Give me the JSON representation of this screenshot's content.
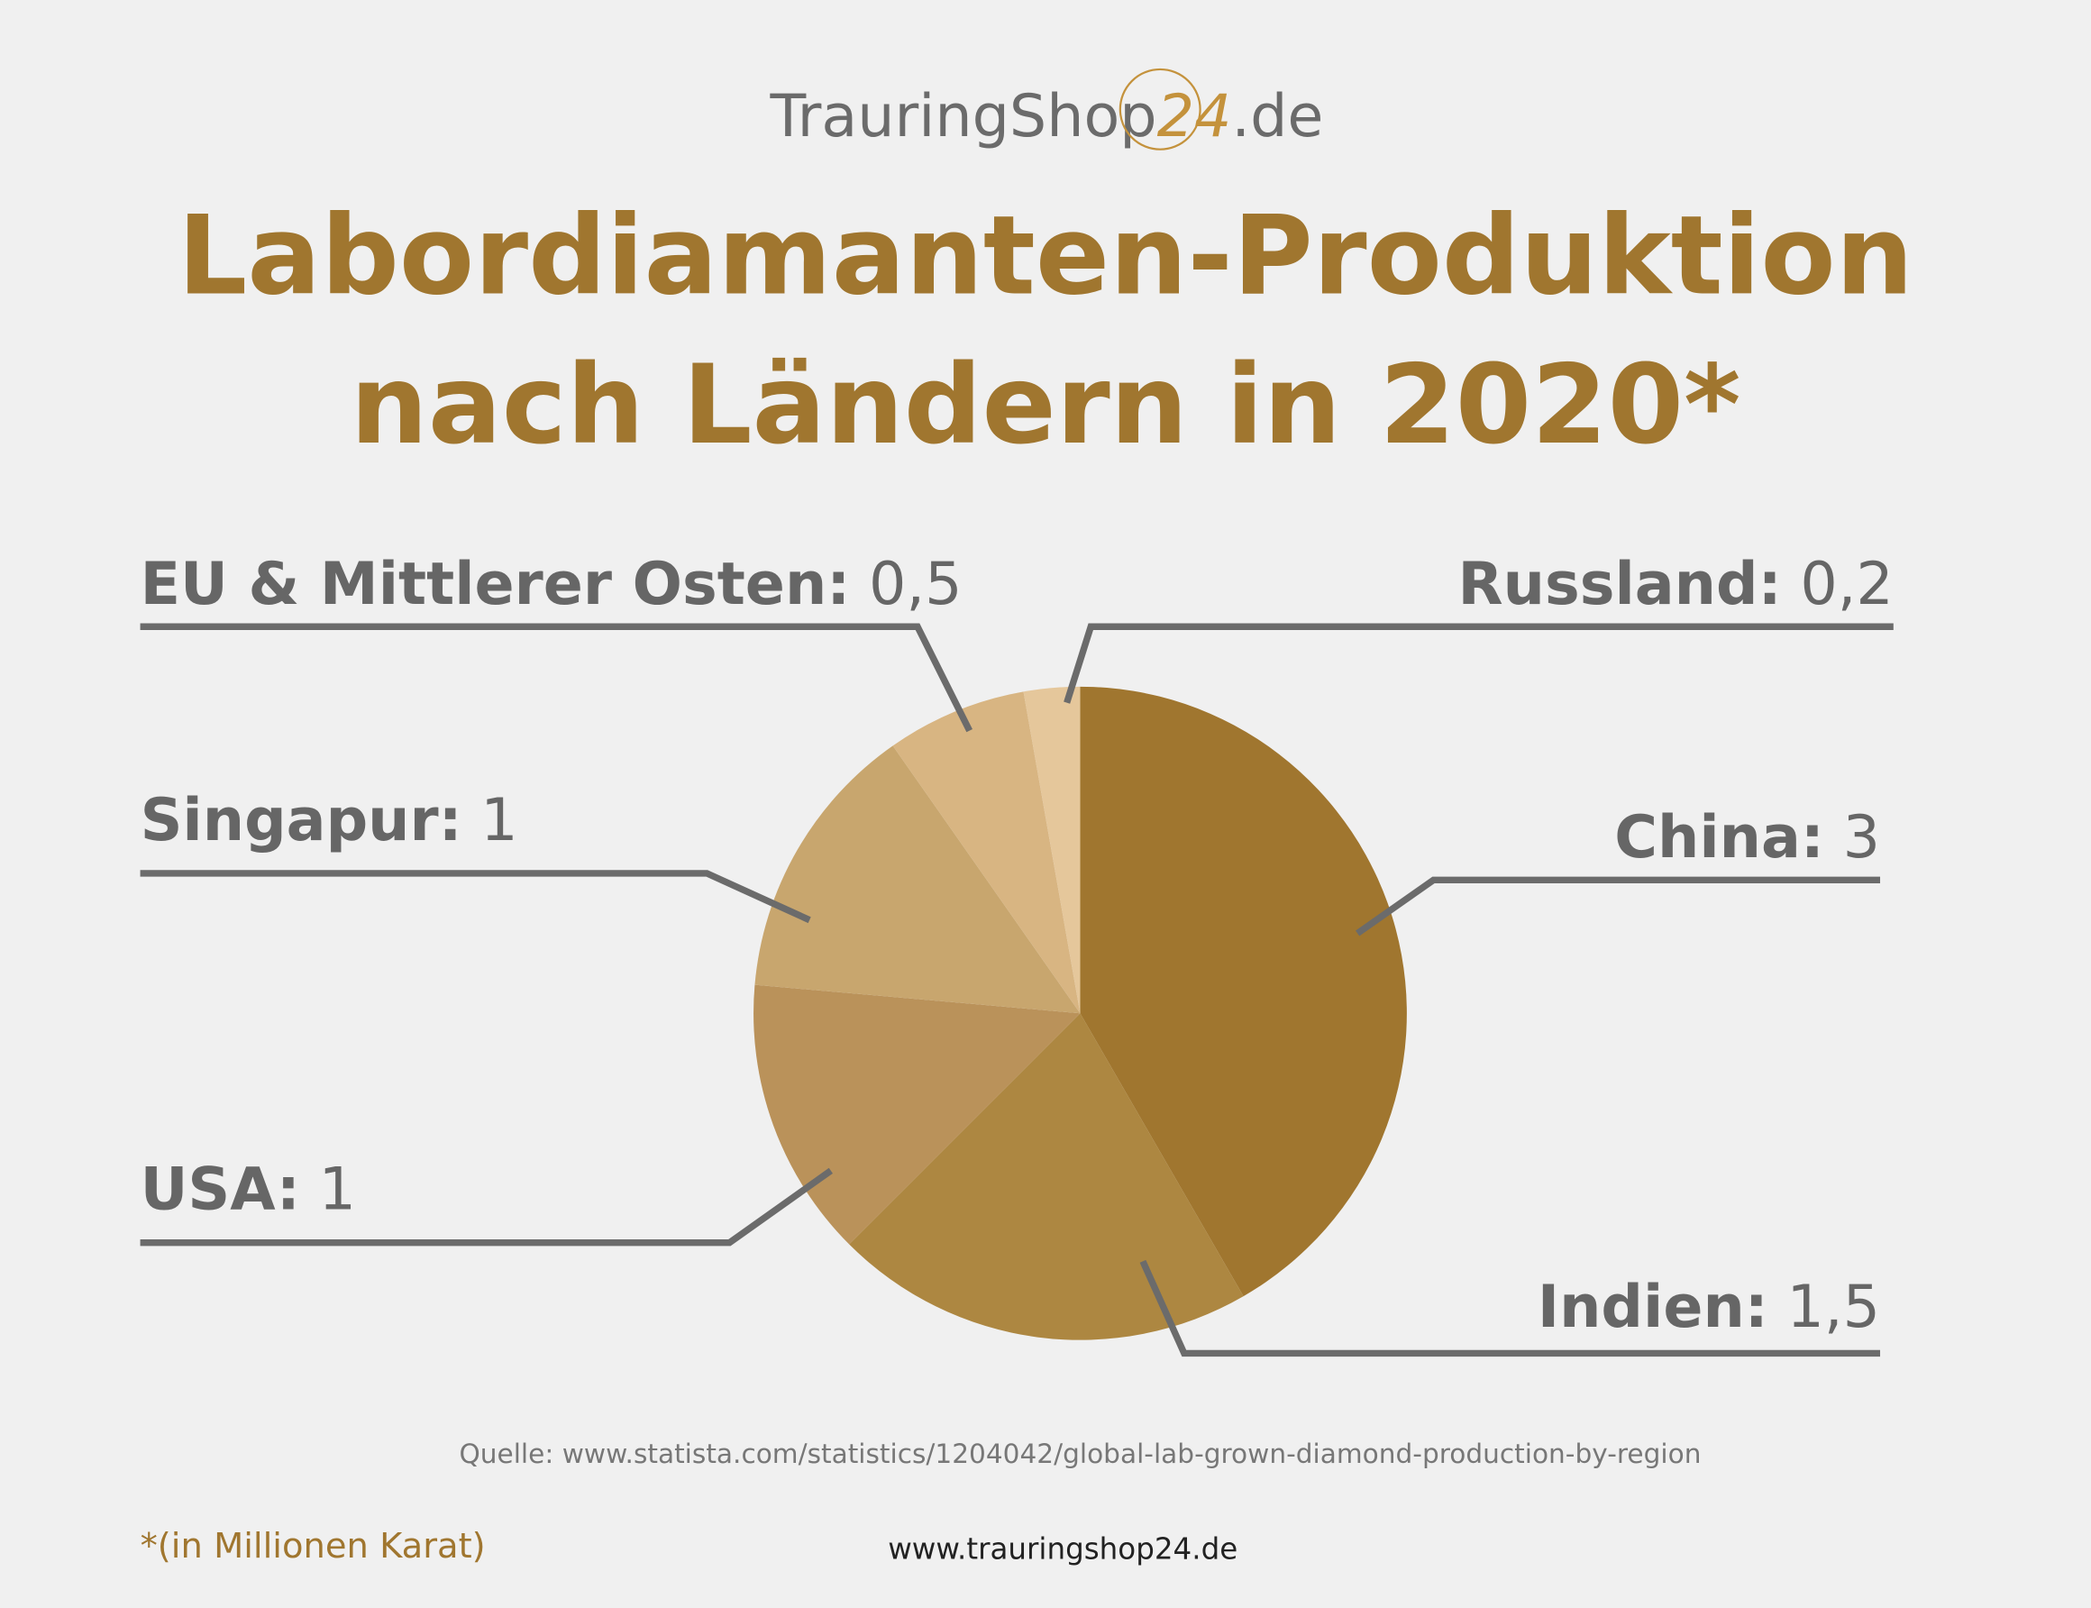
{
  "logo": {
    "name": "TrauringShop",
    "number": "24",
    "domain": ".de"
  },
  "chart_data": {
    "type": "pie",
    "title": [
      "Labordiamanten-Produktion",
      "nach Ländern in 2020*"
    ],
    "categories": [
      "China:",
      "Indien:",
      "USA:",
      "Singapur:",
      "EU & Mittlerer Osten:",
      "Russland:"
    ],
    "values": [
      3,
      1.5,
      1,
      1,
      0.5,
      0.2
    ],
    "value_labels": [
      "3",
      "1,5",
      "1",
      "1",
      "0,5",
      "0,2"
    ],
    "colors": [
      "#a0762f",
      "#ad8741",
      "#ba925a",
      "#c8a66e",
      "#d8b582",
      "#e5c79b"
    ],
    "source": "Quelle: www.statista.com/statistics/1204042/global-lab-grown-diamond-production-by-region",
    "footnote": "*(in Millionen Karat)",
    "website": "www.trauringshop24.de"
  }
}
